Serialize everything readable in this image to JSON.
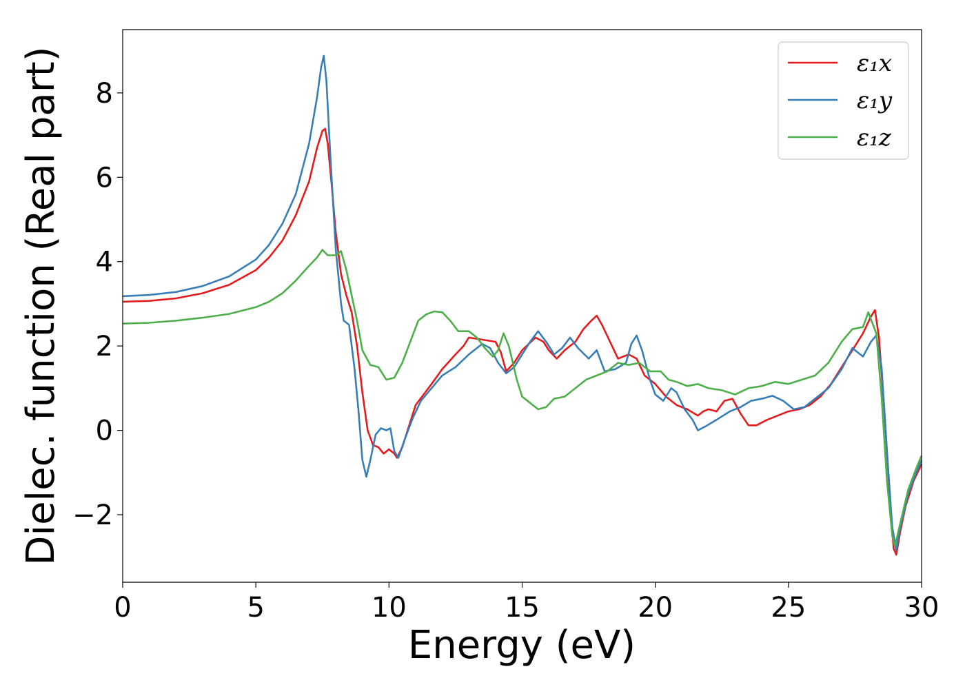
{
  "chart_data": {
    "type": "line",
    "xlabel": "Energy (eV)",
    "ylabel": "Dielec. function (Real part)",
    "xlim": [
      0,
      30
    ],
    "ylim": [
      -3.6,
      9.5
    ],
    "x_ticks": [
      0,
      5,
      10,
      15,
      20,
      25,
      30
    ],
    "x_tick_labels": [
      "0",
      "5",
      "10",
      "15",
      "20",
      "25",
      "30"
    ],
    "y_ticks": [
      -2,
      0,
      2,
      4,
      6,
      8
    ],
    "y_tick_labels": [
      "−2",
      "0",
      "2",
      "4",
      "6",
      "8"
    ],
    "grid": false,
    "legend_position": "top-right",
    "series": [
      {
        "name": "ε₁x",
        "color": "#e41a1c",
        "points": [
          [
            0,
            3.05
          ],
          [
            1,
            3.07
          ],
          [
            2,
            3.13
          ],
          [
            3,
            3.25
          ],
          [
            4,
            3.45
          ],
          [
            5,
            3.8
          ],
          [
            5.5,
            4.1
          ],
          [
            6,
            4.5
          ],
          [
            6.5,
            5.1
          ],
          [
            7,
            5.9
          ],
          [
            7.3,
            6.7
          ],
          [
            7.5,
            7.1
          ],
          [
            7.6,
            7.15
          ],
          [
            7.7,
            6.8
          ],
          [
            7.85,
            5.8
          ],
          [
            8,
            4.7
          ],
          [
            8.2,
            3.7
          ],
          [
            8.4,
            3.2
          ],
          [
            8.6,
            2.8
          ],
          [
            8.8,
            2.0
          ],
          [
            9.0,
            0.9
          ],
          [
            9.2,
            0.0
          ],
          [
            9.4,
            -0.35
          ],
          [
            9.6,
            -0.4
          ],
          [
            9.8,
            -0.55
          ],
          [
            10.0,
            -0.45
          ],
          [
            10.2,
            -0.55
          ],
          [
            10.3,
            -0.65
          ],
          [
            10.5,
            -0.4
          ],
          [
            10.8,
            0.2
          ],
          [
            11.0,
            0.6
          ],
          [
            11.3,
            0.85
          ],
          [
            11.6,
            1.1
          ],
          [
            12.0,
            1.45
          ],
          [
            12.5,
            1.8
          ],
          [
            12.8,
            2.0
          ],
          [
            13.0,
            2.2
          ],
          [
            13.5,
            2.15
          ],
          [
            14.0,
            2.1
          ],
          [
            14.2,
            1.85
          ],
          [
            14.4,
            1.4
          ],
          [
            14.7,
            1.6
          ],
          [
            15.0,
            1.9
          ],
          [
            15.5,
            2.2
          ],
          [
            15.8,
            2.1
          ],
          [
            16.0,
            1.9
          ],
          [
            16.3,
            1.7
          ],
          [
            16.6,
            1.9
          ],
          [
            17.0,
            2.1
          ],
          [
            17.3,
            2.4
          ],
          [
            17.6,
            2.6
          ],
          [
            17.8,
            2.72
          ],
          [
            18.0,
            2.5
          ],
          [
            18.3,
            2.1
          ],
          [
            18.6,
            1.7
          ],
          [
            19.0,
            1.8
          ],
          [
            19.3,
            1.7
          ],
          [
            19.6,
            1.3
          ],
          [
            20.0,
            1.1
          ],
          [
            20.4,
            0.8
          ],
          [
            20.8,
            0.6
          ],
          [
            21.2,
            0.5
          ],
          [
            21.6,
            0.35
          ],
          [
            21.8,
            0.45
          ],
          [
            22.0,
            0.5
          ],
          [
            22.3,
            0.45
          ],
          [
            22.6,
            0.7
          ],
          [
            22.9,
            0.75
          ],
          [
            23.2,
            0.4
          ],
          [
            23.5,
            0.12
          ],
          [
            23.8,
            0.12
          ],
          [
            24.2,
            0.25
          ],
          [
            24.6,
            0.35
          ],
          [
            25.0,
            0.45
          ],
          [
            25.4,
            0.5
          ],
          [
            25.8,
            0.6
          ],
          [
            26.2,
            0.8
          ],
          [
            26.6,
            1.1
          ],
          [
            27.0,
            1.5
          ],
          [
            27.4,
            1.9
          ],
          [
            27.8,
            2.3
          ],
          [
            28.1,
            2.7
          ],
          [
            28.25,
            2.85
          ],
          [
            28.4,
            2.2
          ],
          [
            28.6,
            0.5
          ],
          [
            28.8,
            -1.5
          ],
          [
            28.95,
            -2.8
          ],
          [
            29.05,
            -2.95
          ],
          [
            29.2,
            -2.4
          ],
          [
            29.4,
            -1.8
          ],
          [
            29.7,
            -1.2
          ],
          [
            30.0,
            -0.8
          ]
        ]
      },
      {
        "name": "ε₁y",
        "color": "#377eb8",
        "points": [
          [
            0,
            3.18
          ],
          [
            1,
            3.21
          ],
          [
            2,
            3.28
          ],
          [
            3,
            3.42
          ],
          [
            4,
            3.65
          ],
          [
            5,
            4.05
          ],
          [
            5.5,
            4.4
          ],
          [
            6,
            4.9
          ],
          [
            6.5,
            5.6
          ],
          [
            7,
            6.8
          ],
          [
            7.3,
            7.9
          ],
          [
            7.45,
            8.6
          ],
          [
            7.55,
            8.88
          ],
          [
            7.65,
            8.3
          ],
          [
            7.8,
            6.5
          ],
          [
            8.0,
            4.3
          ],
          [
            8.2,
            3.0
          ],
          [
            8.3,
            2.6
          ],
          [
            8.5,
            2.5
          ],
          [
            8.7,
            1.5
          ],
          [
            8.85,
            0.5
          ],
          [
            9.0,
            -0.7
          ],
          [
            9.15,
            -1.1
          ],
          [
            9.3,
            -0.7
          ],
          [
            9.5,
            -0.1
          ],
          [
            9.7,
            0.05
          ],
          [
            9.9,
            0.0
          ],
          [
            10.05,
            0.05
          ],
          [
            10.2,
            -0.5
          ],
          [
            10.35,
            -0.65
          ],
          [
            10.6,
            -0.2
          ],
          [
            10.9,
            0.3
          ],
          [
            11.2,
            0.7
          ],
          [
            11.6,
            1.0
          ],
          [
            12.0,
            1.3
          ],
          [
            12.5,
            1.5
          ],
          [
            13.0,
            1.8
          ],
          [
            13.5,
            2.05
          ],
          [
            13.8,
            1.95
          ],
          [
            14.1,
            1.6
          ],
          [
            14.4,
            1.35
          ],
          [
            14.7,
            1.5
          ],
          [
            15.0,
            1.8
          ],
          [
            15.3,
            2.1
          ],
          [
            15.6,
            2.35
          ],
          [
            15.9,
            2.1
          ],
          [
            16.2,
            1.8
          ],
          [
            16.5,
            1.95
          ],
          [
            16.8,
            2.2
          ],
          [
            17.1,
            1.95
          ],
          [
            17.5,
            1.7
          ],
          [
            17.8,
            1.9
          ],
          [
            18.1,
            1.4
          ],
          [
            18.5,
            1.45
          ],
          [
            18.9,
            1.6
          ],
          [
            19.1,
            2.05
          ],
          [
            19.3,
            2.25
          ],
          [
            19.5,
            1.9
          ],
          [
            19.8,
            1.2
          ],
          [
            20.0,
            0.85
          ],
          [
            20.3,
            0.7
          ],
          [
            20.6,
            1.0
          ],
          [
            20.8,
            0.9
          ],
          [
            21.1,
            0.5
          ],
          [
            21.4,
            0.25
          ],
          [
            21.6,
            0.0
          ],
          [
            21.9,
            0.1
          ],
          [
            22.3,
            0.25
          ],
          [
            22.8,
            0.45
          ],
          [
            23.2,
            0.55
          ],
          [
            23.6,
            0.7
          ],
          [
            24.0,
            0.75
          ],
          [
            24.4,
            0.82
          ],
          [
            24.8,
            0.7
          ],
          [
            25.2,
            0.5
          ],
          [
            25.6,
            0.55
          ],
          [
            26.0,
            0.75
          ],
          [
            26.5,
            1.0
          ],
          [
            27.0,
            1.45
          ],
          [
            27.4,
            1.95
          ],
          [
            27.8,
            1.75
          ],
          [
            28.1,
            2.1
          ],
          [
            28.3,
            2.25
          ],
          [
            28.5,
            1.5
          ],
          [
            28.7,
            -0.5
          ],
          [
            28.9,
            -2.3
          ],
          [
            29.05,
            -2.85
          ],
          [
            29.2,
            -2.3
          ],
          [
            29.5,
            -1.5
          ],
          [
            29.8,
            -1.0
          ],
          [
            30.0,
            -0.7
          ]
        ]
      },
      {
        "name": "ε₁z",
        "color": "#4daf4a",
        "points": [
          [
            0,
            2.53
          ],
          [
            1,
            2.55
          ],
          [
            2,
            2.6
          ],
          [
            3,
            2.67
          ],
          [
            4,
            2.76
          ],
          [
            5,
            2.92
          ],
          [
            5.5,
            3.05
          ],
          [
            6,
            3.25
          ],
          [
            6.5,
            3.55
          ],
          [
            7,
            3.9
          ],
          [
            7.3,
            4.1
          ],
          [
            7.5,
            4.28
          ],
          [
            7.7,
            4.15
          ],
          [
            8.0,
            4.15
          ],
          [
            8.2,
            4.25
          ],
          [
            8.4,
            3.8
          ],
          [
            8.6,
            3.2
          ],
          [
            8.8,
            2.6
          ],
          [
            9.0,
            1.9
          ],
          [
            9.3,
            1.55
          ],
          [
            9.6,
            1.5
          ],
          [
            9.9,
            1.2
          ],
          [
            10.2,
            1.25
          ],
          [
            10.5,
            1.6
          ],
          [
            10.8,
            2.1
          ],
          [
            11.1,
            2.6
          ],
          [
            11.4,
            2.75
          ],
          [
            11.7,
            2.82
          ],
          [
            12.0,
            2.8
          ],
          [
            12.3,
            2.6
          ],
          [
            12.6,
            2.35
          ],
          [
            13.0,
            2.35
          ],
          [
            13.3,
            2.2
          ],
          [
            13.6,
            1.95
          ],
          [
            13.9,
            1.75
          ],
          [
            14.1,
            1.9
          ],
          [
            14.3,
            2.3
          ],
          [
            14.5,
            2.0
          ],
          [
            14.8,
            1.2
          ],
          [
            15.0,
            0.8
          ],
          [
            15.3,
            0.65
          ],
          [
            15.6,
            0.5
          ],
          [
            15.9,
            0.55
          ],
          [
            16.2,
            0.75
          ],
          [
            16.6,
            0.8
          ],
          [
            17.0,
            1.0
          ],
          [
            17.4,
            1.2
          ],
          [
            17.8,
            1.3
          ],
          [
            18.2,
            1.4
          ],
          [
            18.6,
            1.6
          ],
          [
            19.0,
            1.55
          ],
          [
            19.4,
            1.6
          ],
          [
            19.8,
            1.4
          ],
          [
            20.2,
            1.4
          ],
          [
            20.5,
            1.2
          ],
          [
            20.8,
            1.15
          ],
          [
            21.2,
            1.05
          ],
          [
            21.6,
            1.1
          ],
          [
            22.0,
            1.0
          ],
          [
            22.5,
            0.95
          ],
          [
            23.0,
            0.85
          ],
          [
            23.5,
            1.0
          ],
          [
            24.0,
            1.05
          ],
          [
            24.5,
            1.15
          ],
          [
            25.0,
            1.1
          ],
          [
            25.5,
            1.2
          ],
          [
            26.0,
            1.3
          ],
          [
            26.5,
            1.6
          ],
          [
            27.0,
            2.1
          ],
          [
            27.4,
            2.4
          ],
          [
            27.8,
            2.45
          ],
          [
            28.0,
            2.8
          ],
          [
            28.3,
            2.3
          ],
          [
            28.5,
            0.8
          ],
          [
            28.7,
            -1.2
          ],
          [
            28.9,
            -2.5
          ],
          [
            29.0,
            -2.75
          ],
          [
            29.2,
            -2.2
          ],
          [
            29.5,
            -1.4
          ],
          [
            29.8,
            -0.9
          ],
          [
            30.0,
            -0.6
          ]
        ]
      }
    ]
  }
}
